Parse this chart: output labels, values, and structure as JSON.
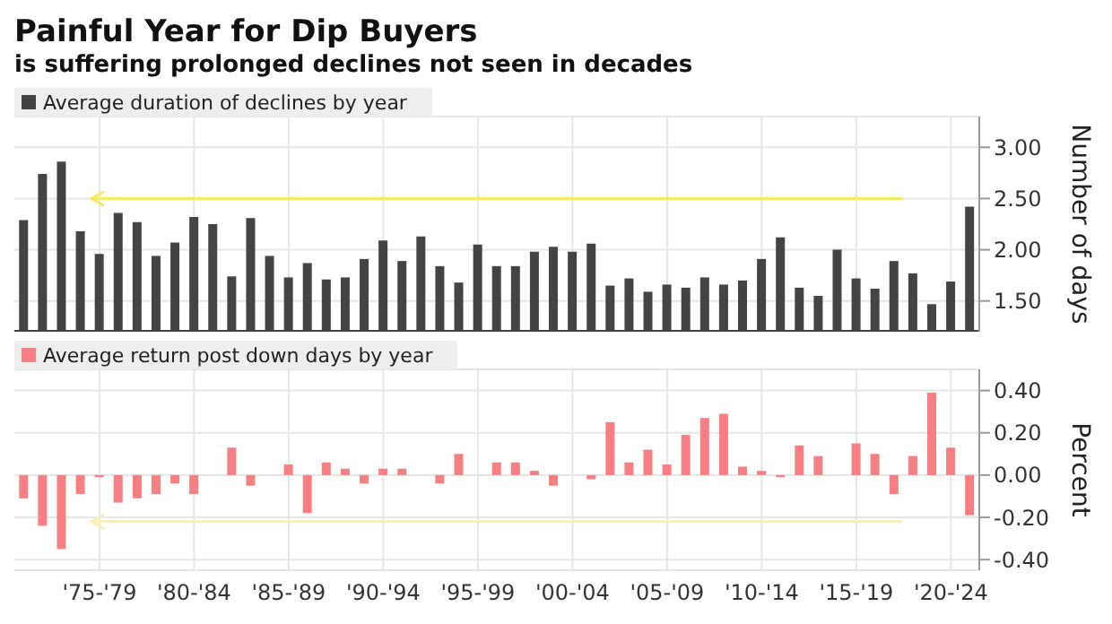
{
  "chart_data": [
    {
      "type": "bar",
      "title": "Painful Year for Dip Buyers",
      "subtitle": "is suffering prolonged declines not seen in decades",
      "ylabel": "Number of days",
      "categories": [
        null,
        null,
        null,
        null,
        null,
        null,
        null,
        null,
        null,
        null,
        null,
        null,
        null,
        null,
        null,
        null,
        null,
        null,
        null,
        null,
        null,
        null,
        null,
        null,
        null,
        null,
        null,
        null,
        null,
        null,
        null,
        null,
        null,
        null,
        null,
        null,
        null,
        null,
        null,
        null,
        null,
        null,
        null,
        null,
        null,
        null,
        null,
        null,
        null,
        null,
        null
      ],
      "series": [
        {
          "name": "Average duration of declines by year",
          "color": "#444444",
          "values": [
            2.29,
            2.74,
            2.86,
            2.18,
            1.96,
            2.36,
            2.27,
            1.94,
            2.07,
            2.32,
            2.25,
            1.74,
            2.31,
            1.94,
            1.73,
            1.87,
            1.71,
            1.73,
            1.91,
            2.09,
            1.89,
            2.13,
            1.84,
            1.68,
            2.05,
            1.84,
            1.84,
            1.98,
            2.03,
            1.98,
            2.06,
            1.65,
            1.72,
            1.59,
            1.66,
            1.63,
            1.73,
            1.66,
            1.7,
            1.91,
            2.12,
            1.63,
            1.55,
            2.0,
            1.72,
            1.62,
            1.89,
            1.77,
            1.47,
            1.69,
            2.42
          ]
        }
      ],
      "ylim": [
        1.2,
        3.3
      ],
      "yticks": [
        {
          "value": 1.5,
          "label": "1.50"
        },
        {
          "value": 2,
          "label": "2.00"
        },
        {
          "value": 2.5,
          "label": "2.50"
        },
        {
          "value": 3,
          "label": "3.00"
        }
      ],
      "grid": true,
      "legend": "top left",
      "tick_labels": "y",
      "ref_lines": [
        {
          "axis": "y",
          "value": 2.5,
          "color": "#f5e96a"
        }
      ]
    },
    {
      "type": "bar",
      "ylabel": "Percent",
      "categories": [
        null,
        null,
        null,
        null,
        "'75-'79",
        null,
        null,
        null,
        null,
        "'80-'84",
        null,
        null,
        null,
        null,
        "'85-'89",
        null,
        null,
        null,
        null,
        "'90-'94",
        null,
        null,
        null,
        null,
        "'95-'99",
        null,
        null,
        null,
        null,
        "'00-'04",
        null,
        null,
        null,
        null,
        "'05-'09",
        null,
        null,
        null,
        null,
        "'10-'14",
        null,
        null,
        null,
        null,
        "'15-'19",
        null,
        null,
        null,
        null,
        "'20-'24",
        null
      ],
      "series": [
        {
          "name": "Average return post down days by year",
          "color": "#f77f82",
          "values": [
            -0.11,
            -0.24,
            -0.35,
            -0.09,
            -0.01,
            -0.13,
            -0.11,
            -0.09,
            -0.04,
            -0.09,
            0.0,
            0.13,
            -0.05,
            0.0,
            0.05,
            -0.18,
            0.06,
            0.03,
            -0.04,
            0.03,
            0.03,
            0.0,
            -0.04,
            0.1,
            0.0,
            0.06,
            0.06,
            0.02,
            -0.05,
            0.0,
            -0.02,
            0.25,
            0.06,
            0.12,
            0.05,
            0.19,
            0.27,
            0.29,
            0.04,
            0.02,
            -0.01,
            0.14,
            0.09,
            0.0,
            0.15,
            0.1,
            -0.09,
            0.09,
            0.39,
            0.13,
            -0.19
          ]
        }
      ],
      "ylim": [
        -0.45,
        0.5
      ],
      "yticks": [
        {
          "value": -0.4,
          "label": "-0.40"
        },
        {
          "value": -0.2,
          "label": "-0.20"
        },
        {
          "value": 0,
          "label": "0.00"
        },
        {
          "value": 0.2,
          "label": "0.20"
        },
        {
          "value": 0.4,
          "label": "0.40"
        }
      ],
      "grid": true,
      "legend": "top left",
      "ref_lines": [
        {
          "axis": "y",
          "value": -0.22,
          "color": "#f8f0b0"
        }
      ]
    }
  ]
}
